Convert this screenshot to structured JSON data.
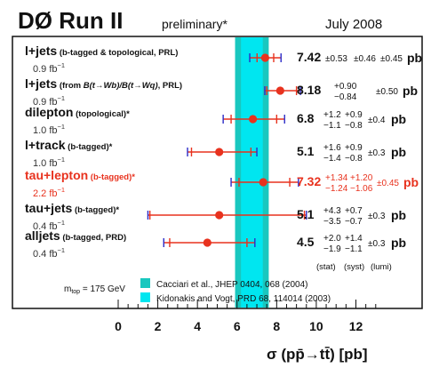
{
  "header": {
    "experiment": "DØ Run II",
    "status": "preliminary*",
    "date": "July 2008"
  },
  "colors": {
    "band_outer": "#19c7bf",
    "band_inner": "#00e6f0",
    "point": "#e8321e",
    "errorbar_outer": "#2b2bc8",
    "highlight_text": "#e8321e",
    "text": "#111111",
    "subtext": "#333333"
  },
  "chart_data": {
    "type": "forest",
    "xlabel": "σ (pp̄→tt̄) [pb]",
    "xlim": [
      0,
      13
    ],
    "xticks": [
      0,
      2,
      4,
      6,
      8,
      10,
      12
    ],
    "theory_bands": [
      {
        "label": "Cacciari et al., JHEP 0404, 068 (2004)",
        "low": 5.9,
        "high": 7.6
      },
      {
        "label": "Kidonakis and Vogt, PRD 68, 114014 (2003)",
        "low": 6.2,
        "high": 7.3
      }
    ],
    "mtop_label": "m",
    "mtop_sub": "top",
    "mtop_value": " = 175 GeV",
    "column_headers": [
      "(stat)",
      "(syst)",
      "(lumi)"
    ],
    "measurements": [
      {
        "name": "l+jets",
        "note": "(b-tagged & topological, PRL)",
        "lumi": "0.9 fb",
        "lumi_exp": "−1",
        "value": 7.42,
        "value_label": "7.42",
        "stat": "±0.53",
        "syst": "±0.46",
        "syst_up": "",
        "syst_dn": "",
        "stat_up": "",
        "stat_dn": "",
        "lumi_unc": "±0.45",
        "err_inner": [
          7.01,
          7.85
        ],
        "err_outer": [
          6.64,
          8.22
        ],
        "highlight": false
      },
      {
        "name": "l+jets",
        "note_pre": "(from ",
        "note_math": "B(t→Wb)/B(t→Wq)",
        "note_post": ", PRL)",
        "lumi": "0.9 fb",
        "lumi_exp": "−1",
        "value": 8.18,
        "value_label": "8.18",
        "stat": "",
        "syst": "",
        "stat_up": "",
        "stat_dn": "",
        "syst_up": "+0.90",
        "syst_dn": "−0.84",
        "lumi_unc": "±0.50",
        "err_inner": [
          7.5,
          9.0
        ],
        "err_outer": [
          7.4,
          9.2
        ],
        "highlight": false
      },
      {
        "name": "dilepton",
        "note": "(topological)*",
        "lumi": "1.0 fb",
        "lumi_exp": "−1",
        "value": 6.8,
        "value_label": "6.8",
        "stat_up": "+1.2",
        "stat_dn": "−1.1",
        "syst_up": "+0.9",
        "syst_dn": "−0.8",
        "lumi_unc": "±0.4",
        "err_inner": [
          5.7,
          8.0
        ],
        "err_outer": [
          5.3,
          8.4
        ],
        "highlight": false
      },
      {
        "name": "l+track",
        "note": "(b-tagged)*",
        "lumi": "1.0 fb",
        "lumi_exp": "−1",
        "value": 5.1,
        "value_label": "5.1",
        "stat_up": "+1.6",
        "stat_dn": "−1.4",
        "syst_up": "+0.9",
        "syst_dn": "−0.8",
        "lumi_unc": "±0.3",
        "err_inner": [
          3.7,
          6.7
        ],
        "err_outer": [
          3.5,
          7.0
        ],
        "highlight": false
      },
      {
        "name": "tau+lepton",
        "note": "(b-tagged)*",
        "lumi": "2.2 fb",
        "lumi_exp": "−1",
        "value": 7.32,
        "value_label": "7.32",
        "stat_up": "+1.34",
        "stat_dn": "−1.24",
        "syst_up": "+1.20",
        "syst_dn": "−1.06",
        "lumi_unc": "±0.45",
        "err_inner": [
          6.1,
          8.66
        ],
        "err_outer": [
          5.7,
          9.1
        ],
        "highlight": true
      },
      {
        "name": "tau+jets",
        "note": "(b-tagged)*",
        "lumi": "0.4 fb",
        "lumi_exp": "−1",
        "value": 5.1,
        "value_label": "5.1",
        "stat_up": "+4.3",
        "stat_dn": "−3.5",
        "syst_up": "+0.7",
        "syst_dn": "−0.7",
        "lumi_unc": "±0.3",
        "err_inner": [
          1.6,
          9.4
        ],
        "err_outer": [
          1.5,
          9.5
        ],
        "highlight": false
      },
      {
        "name": "alljets",
        "note": "(b-tagged, PRD)",
        "lumi": "0.4 fb",
        "lumi_exp": "−1",
        "value": 4.5,
        "value_label": "4.5",
        "stat_up": "+2.0",
        "stat_dn": "−1.9",
        "syst_up": "+1.4",
        "syst_dn": "−1.1",
        "lumi_unc": "±0.3",
        "err_inner": [
          2.6,
          6.5
        ],
        "err_outer": [
          2.3,
          6.9
        ],
        "highlight": false
      }
    ],
    "unit": "pb"
  }
}
